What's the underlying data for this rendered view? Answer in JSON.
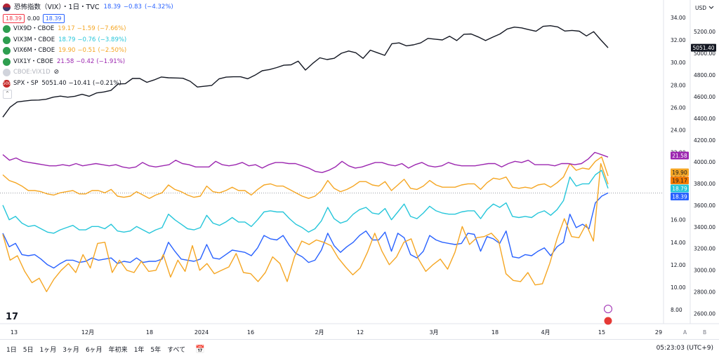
{
  "header": {
    "symbol_title": "恐怖指数（VIX）・1日・TVC",
    "last": "18.39",
    "change": "−0.83",
    "change_pct": "(−4.32%)",
    "bid": "18.39",
    "spread": "0.00",
    "ask": "18.39"
  },
  "legend": [
    {
      "name": "VIX9D・CBOE",
      "last": "19.17",
      "change": "−1.59",
      "pct": "(−7.66%)",
      "color": "#f5a623",
      "icon": "eye-icon"
    },
    {
      "name": "VIX3M・CBOE",
      "last": "18.79",
      "change": "−0.76",
      "pct": "(−3.89%)",
      "color": "#26c6da",
      "icon": "eye-icon"
    },
    {
      "name": "VIX6M・CBOE",
      "last": "19.90",
      "change": "−0.51",
      "pct": "(−2.50%)",
      "color": "#f5a623",
      "icon": "eye-icon"
    },
    {
      "name": "VIX1Y・CBOE",
      "last": "21.58",
      "change": "−0.42",
      "pct": "(−1.91%)",
      "color": "#9c27b0",
      "icon": "eye-icon"
    },
    {
      "name": "CBOE:VIX1D",
      "hidden": true,
      "color": "#b2b5be",
      "icon": "eye-off-icon"
    },
    {
      "name": "SPX・SP",
      "last": "5051.40",
      "change": "−10.41",
      "pct": "(−0.21%)",
      "color": "#131722",
      "icon": "sp500-badge-icon"
    }
  ],
  "axis": {
    "currency": "USD",
    "left_ticks": [
      "34.00",
      "32.00",
      "30.00",
      "28.00",
      "26.00",
      "24.00",
      "22.00",
      "20.00",
      "18.00",
      "16.00",
      "14.00",
      "12.00",
      "10.00",
      "8.00"
    ],
    "right_ticks": [
      "5200.00",
      "5000.00",
      "4800.00",
      "4600.00",
      "4400.00",
      "4200.00",
      "4000.00",
      "3800.00",
      "3600.00",
      "3400.00",
      "3200.00",
      "3000.00",
      "2800.00",
      "2600.00"
    ],
    "x_ticks": [
      "13",
      "12月",
      "18",
      "2024",
      "16",
      "2月",
      "12",
      "3月",
      "18",
      "4月",
      "15",
      "29"
    ],
    "spx_label": "5051.40",
    "value_labels": [
      {
        "text": "21.58",
        "color": "#9c27b0"
      },
      {
        "text": "19.90",
        "color": "#f5a623"
      },
      {
        "text": "19.17",
        "color": "#f57c00"
      },
      {
        "text": "18.79",
        "color": "#26c6da"
      },
      {
        "text": "18.39",
        "color": "#2962ff"
      }
    ],
    "corner_a": "A",
    "corner_b": "B"
  },
  "bottom": {
    "ranges": [
      "1日",
      "5日",
      "1ヶ月",
      "3ヶ月",
      "6ヶ月",
      "年初来",
      "1年",
      "5年",
      "すべて"
    ],
    "time": "05:23:03 (UTC+9)"
  },
  "chart_data": {
    "type": "line",
    "x_labels": [
      "13",
      "12月",
      "18",
      "2024",
      "16",
      "2月",
      "12",
      "3月",
      "18",
      "4月",
      "15",
      "29"
    ],
    "ylim": [
      7,
      35
    ],
    "series": [
      {
        "name": "VIX",
        "color": "#2962ff",
        "values": [
          14.8,
          13.6,
          13.9,
          12.9,
          12.8,
          12.9,
          12.5,
          12.0,
          11.7,
          12.1,
          12.4,
          12.4,
          12.2,
          12.3,
          12.6,
          12.4,
          12.5,
          12.6,
          12.1,
          12.3,
          12.2,
          12.6,
          12.2,
          12.3,
          12.3,
          12.5,
          14.0,
          13.2,
          12.5,
          12.4,
          12.3,
          12.5,
          13.8,
          12.6,
          12.5,
          12.9,
          13.3,
          13.2,
          13.1,
          12.8,
          13.5,
          14.6,
          14.3,
          14.2,
          14.6,
          13.7,
          13.0,
          12.7,
          12.2,
          12.4,
          13.3,
          14.8,
          13.7,
          13.1,
          13.6,
          14.0,
          14.6,
          15.0,
          14.2,
          14.2,
          14.9,
          13.2,
          14.8,
          14.4,
          12.9,
          12.6,
          13.2,
          14.6,
          14.2,
          14.0,
          13.9,
          13.8,
          13.9,
          14.8,
          14.7,
          13.2,
          14.5,
          14.3,
          13.9,
          15.0,
          12.7,
          12.6,
          12.9,
          12.8,
          13.2,
          13.5,
          12.8,
          13.6,
          14.0,
          16.5,
          15.3,
          15.6,
          15.2,
          17.5,
          18.1,
          18.39
        ]
      },
      {
        "name": "VIX9D",
        "color": "#f5a623",
        "values": [
          14.7,
          12.4,
          12.8,
          11.4,
          10.4,
          10.8,
          9.6,
          10.7,
          11.5,
          12.1,
          11.3,
          12.9,
          11.7,
          13.9,
          14.0,
          11.3,
          12.4,
          11.5,
          11.3,
          12.3,
          11.4,
          11.5,
          12.9,
          10.9,
          12.4,
          11.4,
          13.7,
          11.5,
          12.1,
          11.2,
          11.5,
          11.8,
          13.0,
          11.3,
          11.2,
          10.5,
          11.3,
          12.7,
          12.1,
          10.5,
          12.7,
          14.1,
          13.8,
          14.2,
          14.0,
          13.7,
          12.6,
          11.8,
          11.1,
          11.7,
          13.1,
          14.8,
          13.2,
          12.0,
          12.7,
          14.0,
          14.3,
          12.5,
          11.4,
          12.0,
          12.5,
          11.6,
          13.1,
          15.4,
          13.8,
          14.4,
          14.5,
          14.8,
          14.1,
          11.2,
          10.6,
          10.5,
          11.3,
          10.2,
          10.3,
          12.1,
          14.3,
          16.1,
          14.5,
          14.4,
          15.6,
          14.1,
          21.0,
          19.17
        ]
      },
      {
        "name": "VIX3M",
        "color": "#26c6da",
        "values": [
          17.3,
          16.0,
          16.3,
          15.7,
          15.4,
          15.5,
          15.2,
          14.9,
          14.8,
          15.1,
          15.3,
          15.5,
          15.1,
          15.1,
          15.4,
          15.4,
          15.2,
          15.6,
          15.0,
          14.9,
          15.0,
          15.4,
          15.1,
          14.8,
          15.1,
          15.3,
          16.5,
          16.0,
          15.6,
          15.2,
          15.1,
          15.3,
          16.4,
          15.7,
          15.5,
          15.8,
          16.2,
          15.8,
          15.8,
          15.4,
          16.0,
          16.7,
          16.8,
          16.7,
          16.7,
          16.1,
          15.6,
          15.3,
          14.9,
          15.2,
          15.9,
          17.1,
          16.1,
          15.7,
          15.9,
          16.5,
          16.9,
          17.1,
          16.6,
          16.5,
          17.0,
          16.0,
          16.7,
          17.4,
          16.3,
          16.1,
          16.6,
          17.2,
          16.8,
          16.6,
          16.5,
          16.5,
          16.7,
          16.8,
          16.8,
          16.1,
          16.9,
          17.4,
          17.1,
          17.5,
          16.3,
          16.2,
          16.3,
          16.2,
          16.6,
          16.8,
          16.4,
          16.9,
          17.7,
          19.8,
          19.0,
          19.2,
          19.2,
          20.0,
          20.4,
          18.79
        ]
      },
      {
        "name": "VIX6M",
        "color": "#f5a623",
        "values": [
          20.0,
          19.5,
          19.3,
          19.0,
          18.6,
          18.6,
          18.5,
          18.3,
          18.2,
          18.4,
          18.5,
          18.6,
          18.3,
          18.3,
          18.6,
          18.6,
          18.4,
          18.7,
          18.1,
          18.0,
          18.1,
          18.5,
          18.2,
          17.9,
          18.2,
          18.4,
          19.1,
          18.7,
          18.5,
          18.2,
          18.0,
          18.1,
          19.0,
          18.5,
          18.4,
          18.6,
          18.9,
          18.6,
          18.6,
          18.2,
          18.7,
          19.1,
          19.2,
          19.0,
          19.0,
          18.7,
          18.4,
          18.1,
          17.9,
          18.1,
          18.6,
          19.5,
          18.8,
          18.5,
          18.7,
          19.0,
          19.4,
          19.4,
          19.1,
          19.0,
          19.4,
          18.6,
          19.1,
          19.6,
          18.8,
          18.7,
          19.0,
          19.5,
          19.1,
          18.9,
          18.9,
          18.9,
          19.1,
          19.2,
          19.2,
          18.7,
          19.3,
          19.7,
          19.6,
          19.8,
          18.9,
          18.8,
          18.9,
          18.8,
          19.1,
          19.2,
          18.9,
          19.3,
          19.8,
          21.0,
          20.4,
          20.6,
          20.5,
          21.2,
          21.6,
          19.9
        ]
      },
      {
        "name": "VIX1Y",
        "color": "#9c27b0",
        "values": [
          21.8,
          21.3,
          21.5,
          21.2,
          21.1,
          21.0,
          20.9,
          20.8,
          20.8,
          20.9,
          20.8,
          21.0,
          20.8,
          20.9,
          21.0,
          20.9,
          20.8,
          20.9,
          20.7,
          20.6,
          20.7,
          21.1,
          20.8,
          20.7,
          20.8,
          20.9,
          21.3,
          21.0,
          20.9,
          20.7,
          20.7,
          20.7,
          21.2,
          20.9,
          20.8,
          20.9,
          21.1,
          20.8,
          20.9,
          20.6,
          20.9,
          21.1,
          21.1,
          21.0,
          21.0,
          20.8,
          20.6,
          20.3,
          20.2,
          20.4,
          20.7,
          21.2,
          20.8,
          20.6,
          20.7,
          20.9,
          21.1,
          21.1,
          20.9,
          20.8,
          21.0,
          20.6,
          20.9,
          21.1,
          20.8,
          20.7,
          20.8,
          21.1,
          20.9,
          20.8,
          20.8,
          20.8,
          20.9,
          21.0,
          21.0,
          20.7,
          21.0,
          21.2,
          21.1,
          21.3,
          20.9,
          20.9,
          20.9,
          20.8,
          21.0,
          21.0,
          20.9,
          21.0,
          21.4,
          22.0,
          21.8,
          21.58
        ]
      },
      {
        "name": "SPX",
        "color": "#131722",
        "axis": "right",
        "values": [
          4411,
          4502,
          4551,
          4560,
          4567,
          4569,
          4576,
          4595,
          4605,
          4595,
          4604,
          4622,
          4604,
          4634,
          4643,
          4657,
          4717,
          4720,
          4768,
          4768,
          4732,
          4754,
          4781,
          4774,
          4772,
          4770,
          4742,
          4689,
          4696,
          4704,
          4764,
          4780,
          4783,
          4783,
          4765,
          4798,
          4839,
          4850,
          4868,
          4890,
          4894,
          4927,
          4845,
          4906,
          4958,
          4942,
          4954,
          5000,
          5021,
          5005,
          4953,
          5029,
          5005,
          4981,
          5088,
          5096,
          5069,
          5078,
          5096,
          5137,
          5130,
          5123,
          5157,
          5117,
          5175,
          5178,
          5150,
          5117,
          5149,
          5178,
          5224,
          5241,
          5234,
          5218,
          5203,
          5248,
          5254,
          5243,
          5205,
          5211,
          5204,
          5160,
          5199,
          5123,
          5051.4
        ]
      }
    ]
  }
}
